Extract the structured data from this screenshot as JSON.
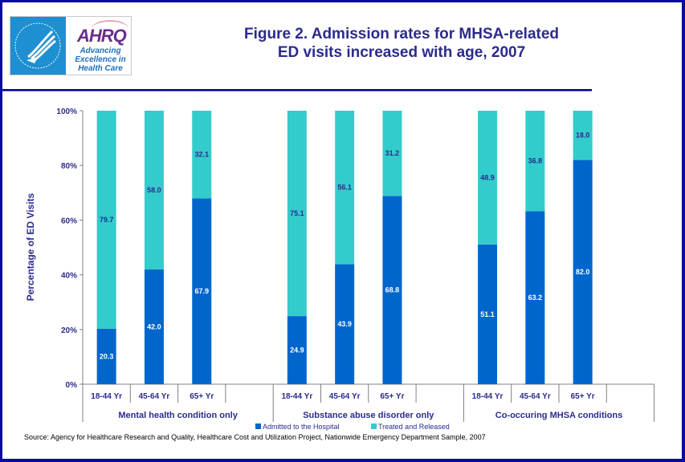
{
  "header": {
    "title_line1": "Figure 2. Admission rates for MHSA-related",
    "title_line2": "ED visits increased with age, 2007",
    "logo": {
      "hhs_icon": "hhs-eagle-seal-icon",
      "agency_mark": "AHRQ",
      "tagline_lines": [
        "Advancing",
        "Excellence in",
        "Health Care"
      ]
    }
  },
  "colors": {
    "admitted": "#0066cc",
    "treated": "#33cccc",
    "text": "#2b2b8e",
    "frame": "#0a0a9e",
    "axis": "#808080"
  },
  "chart_data": {
    "type": "bar",
    "stacked": true,
    "percent": true,
    "title": "Figure 2. Admission rates for MHSA-related ED visits increased with age, 2007",
    "xlabel": "",
    "ylabel": "Percentage of ED Visits",
    "ylim": [
      0,
      100
    ],
    "yticks": [
      "0%",
      "20%",
      "40%",
      "60%",
      "80%",
      "100%"
    ],
    "groups": [
      {
        "label": "Mental health condition only",
        "categories": [
          "18-44 Yr",
          "45-64 Yr",
          "65+ Yr"
        ],
        "admitted": [
          20.3,
          42.0,
          67.9
        ],
        "treated": [
          79.7,
          58.0,
          32.1
        ],
        "admitted_labels": [
          "20.3",
          "42.0",
          "67.9"
        ],
        "treated_labels": [
          "79.7",
          "58.0",
          "32.1"
        ]
      },
      {
        "label": "Substance abuse disorder only",
        "categories": [
          "18-44 Yr",
          "45-64 Yr",
          "65+ Yr"
        ],
        "admitted": [
          24.9,
          43.9,
          68.8
        ],
        "treated": [
          75.1,
          56.1,
          31.2
        ],
        "admitted_labels": [
          "24.9",
          "43.9",
          "68.8"
        ],
        "treated_labels": [
          "75.1",
          "56.1",
          "31.2"
        ]
      },
      {
        "label": "Co-occuring MHSA conditions",
        "categories": [
          "18-44 Yr",
          "45-64 Yr",
          "65+ Yr"
        ],
        "admitted": [
          51.1,
          63.2,
          82.0
        ],
        "treated": [
          48.9,
          36.8,
          18.0
        ],
        "admitted_labels": [
          "51.1",
          "63.2",
          "82.0"
        ],
        "treated_labels": [
          "48.9",
          "36.8",
          "18.0"
        ]
      }
    ],
    "series": [
      {
        "name": "Admitted to the Hospital"
      },
      {
        "name": "Treated and Released"
      }
    ],
    "legend": "bottom-center",
    "grid": false
  },
  "source": "Source: Agency for Healthcare Research and Quality, Healthcare Cost and Utilization Project, Nationwide Emergency Department Sample, 2007"
}
